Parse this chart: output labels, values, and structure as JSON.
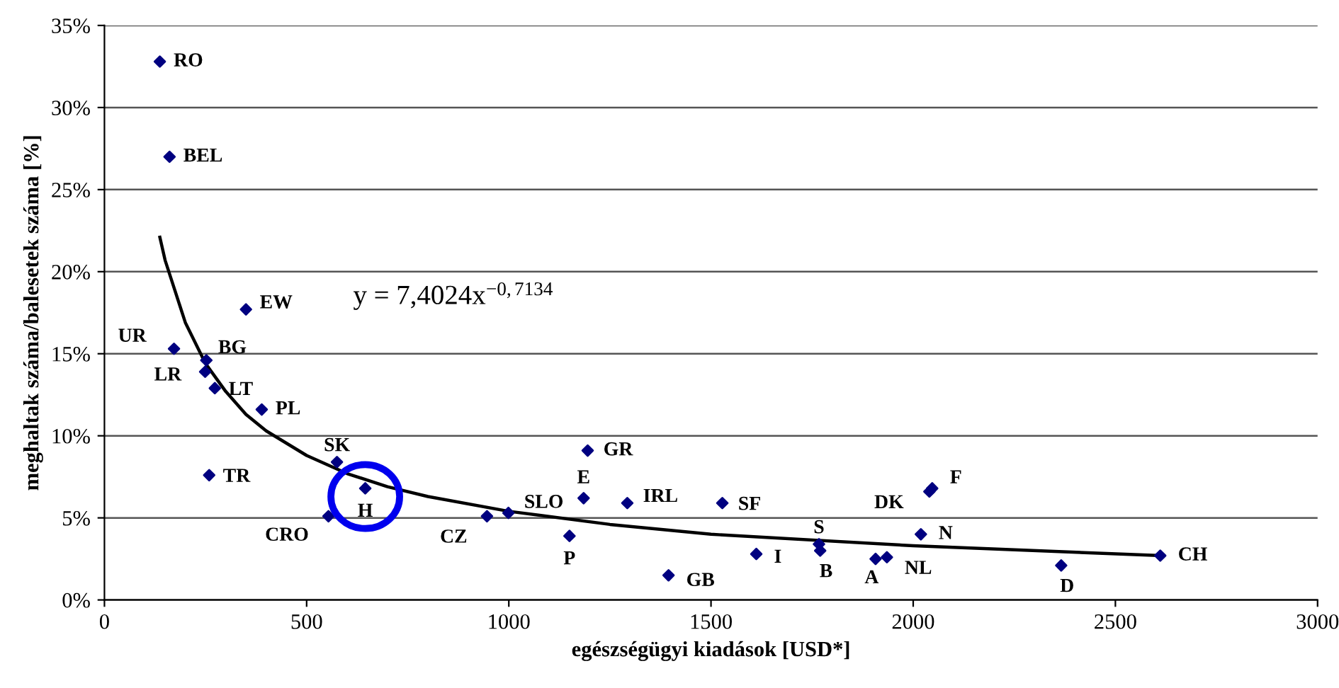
{
  "chart_data": {
    "type": "scatter",
    "xlabel": "egészségügyi kiadások [USD*]",
    "ylabel": "meghaltak száma/balesetek száma [%]",
    "xlim": [
      0,
      3000
    ],
    "xticks": [
      0,
      500,
      1000,
      1500,
      2000,
      2500,
      3000
    ],
    "ylim": [
      0,
      35
    ],
    "yticks": [
      {
        "value": 0,
        "label": "0%"
      },
      {
        "value": 5,
        "label": "5%"
      },
      {
        "value": 10,
        "label": "10%"
      },
      {
        "value": 15,
        "label": "15%"
      },
      {
        "value": 20,
        "label": "20%"
      },
      {
        "value": 25,
        "label": "25%"
      },
      {
        "value": 30,
        "label": "30%"
      },
      {
        "value": 35,
        "label": "35%"
      }
    ],
    "grid": "y",
    "legend": false,
    "series": [
      {
        "color": "#000080",
        "marker": "diamond",
        "x": [
          137,
          161,
          350,
          172,
          252,
          249,
          273,
          389,
          575,
          259,
          645,
          554,
          946,
          999,
          1150,
          1195,
          1185,
          1293,
          1528,
          1395,
          1612,
          1767,
          1770,
          1907,
          1935,
          2040,
          2047,
          2019,
          2366,
          2611
        ],
        "values": [
          32.8,
          27.0,
          17.7,
          15.3,
          14.6,
          13.9,
          12.9,
          11.6,
          8.4,
          7.6,
          6.8,
          5.1,
          5.1,
          5.3,
          3.9,
          9.1,
          6.2,
          5.9,
          5.9,
          1.5,
          2.8,
          3.4,
          3.0,
          2.5,
          2.6,
          6.6,
          6.8,
          4.0,
          2.1,
          2.7
        ]
      },
      {
        "type": "line",
        "color": "#000000",
        "marker": "none",
        "line_style": "solid",
        "x": [
          137,
          150,
          200,
          250,
          300,
          350,
          400,
          500,
          600,
          700,
          800,
          1000,
          1250,
          1500,
          2000,
          2611
        ],
        "values": [
          22.1,
          20.7,
          16.9,
          14.4,
          12.7,
          11.3,
          10.3,
          8.8,
          7.7,
          6.9,
          6.3,
          5.4,
          4.6,
          4.0,
          3.3,
          2.7
        ]
      }
    ],
    "annotations": [
      {
        "text": "RO",
        "x": 137,
        "y": 32.8
      },
      {
        "text": "BEL",
        "x": 161,
        "y": 27.0
      },
      {
        "text": "EW",
        "x": 350,
        "y": 17.7
      },
      {
        "text": "UR",
        "x": 172,
        "y": 15.3
      },
      {
        "text": "BG",
        "x": 252,
        "y": 14.6
      },
      {
        "text": "LR",
        "x": 249,
        "y": 13.9
      },
      {
        "text": "LT",
        "x": 273,
        "y": 12.9
      },
      {
        "text": "PL",
        "x": 389,
        "y": 11.6
      },
      {
        "text": "SK",
        "x": 575,
        "y": 8.4
      },
      {
        "text": "TR",
        "x": 259,
        "y": 7.6
      },
      {
        "text": "H",
        "x": 645,
        "y": 6.8
      },
      {
        "text": "CRO",
        "x": 554,
        "y": 5.1
      },
      {
        "text": "CZ",
        "x": 946,
        "y": 5.1
      },
      {
        "text": "SLO",
        "x": 999,
        "y": 5.3
      },
      {
        "text": "P",
        "x": 1150,
        "y": 3.9
      },
      {
        "text": "GR",
        "x": 1195,
        "y": 9.1
      },
      {
        "text": "E",
        "x": 1185,
        "y": 6.2
      },
      {
        "text": "IRL",
        "x": 1293,
        "y": 5.9
      },
      {
        "text": "SF",
        "x": 1528,
        "y": 5.9
      },
      {
        "text": "GB",
        "x": 1395,
        "y": 1.5
      },
      {
        "text": "I",
        "x": 1612,
        "y": 2.8
      },
      {
        "text": "S",
        "x": 1767,
        "y": 3.4
      },
      {
        "text": "B",
        "x": 1770,
        "y": 3.0
      },
      {
        "text": "A",
        "x": 1907,
        "y": 2.5
      },
      {
        "text": "NL",
        "x": 1935,
        "y": 2.6
      },
      {
        "text": "DK",
        "x": 2040,
        "y": 6.6
      },
      {
        "text": "F",
        "x": 2047,
        "y": 6.8
      },
      {
        "text": "N",
        "x": 2019,
        "y": 4.0
      },
      {
        "text": "D",
        "x": 2366,
        "y": 2.1
      },
      {
        "text": "CH",
        "x": 2611,
        "y": 2.7
      },
      "y = 7,4024x$^{−0,7134}$"
    ]
  }
}
